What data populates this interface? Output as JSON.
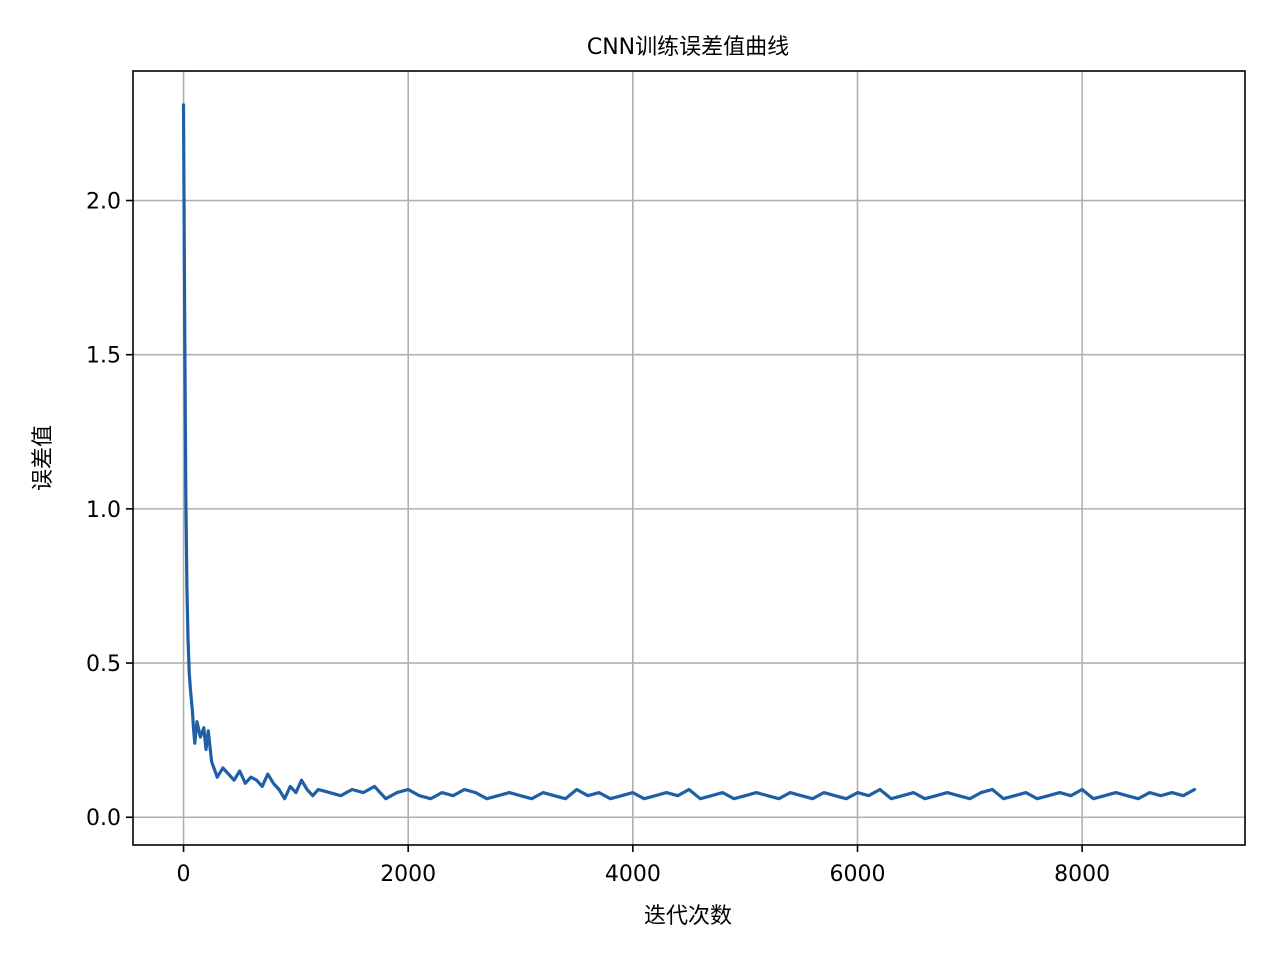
{
  "chart_data": {
    "type": "line",
    "title": "CNN训练误差值曲线",
    "xlabel": "迭代次数",
    "ylabel": "误差值",
    "xlim": [
      -450,
      9450
    ],
    "ylim": [
      -0.09,
      2.42
    ],
    "xticks": [
      0,
      2000,
      4000,
      6000,
      8000
    ],
    "xtick_labels": [
      "0",
      "2000",
      "4000",
      "6000",
      "8000"
    ],
    "yticks": [
      0.0,
      0.5,
      1.0,
      1.5,
      2.0
    ],
    "ytick_labels": [
      "0.0",
      "0.5",
      "1.0",
      "1.5",
      "2.0"
    ],
    "grid": true,
    "legend": "none",
    "color": "#1f5fa6",
    "series": [
      {
        "x": [
          0,
          10,
          20,
          30,
          40,
          50,
          60,
          70,
          80,
          90,
          100,
          120,
          150,
          180,
          200,
          220,
          250,
          280,
          300,
          350,
          400,
          450,
          500,
          550,
          600,
          650,
          700,
          750,
          800,
          850,
          900,
          950,
          1000,
          1050,
          1100,
          1150,
          1200,
          1300,
          1400,
          1500,
          1600,
          1700,
          1800,
          1900,
          2000,
          2100,
          2200,
          2300,
          2400,
          2500,
          2600,
          2700,
          2800,
          2900,
          3000,
          3100,
          3200,
          3300,
          3400,
          3500,
          3600,
          3700,
          3800,
          3900,
          4000,
          4100,
          4200,
          4300,
          4400,
          4500,
          4600,
          4700,
          4800,
          4900,
          5000,
          5100,
          5200,
          5300,
          5400,
          5500,
          5600,
          5700,
          5800,
          5900,
          6000,
          6100,
          6200,
          6300,
          6400,
          6500,
          6600,
          6700,
          6800,
          6900,
          7000,
          7100,
          7200,
          7300,
          7400,
          7500,
          7600,
          7700,
          7800,
          7900,
          8000,
          8100,
          8200,
          8300,
          8400,
          8500,
          8600,
          8700,
          8800,
          8900,
          9000
        ],
        "y": [
          2.31,
          1.6,
          1.05,
          0.75,
          0.58,
          0.47,
          0.42,
          0.38,
          0.34,
          0.28,
          0.24,
          0.31,
          0.26,
          0.29,
          0.22,
          0.28,
          0.18,
          0.15,
          0.13,
          0.16,
          0.14,
          0.12,
          0.15,
          0.11,
          0.13,
          0.12,
          0.1,
          0.14,
          0.11,
          0.09,
          0.06,
          0.1,
          0.08,
          0.12,
          0.09,
          0.07,
          0.09,
          0.08,
          0.07,
          0.09,
          0.08,
          0.1,
          0.06,
          0.08,
          0.09,
          0.07,
          0.06,
          0.08,
          0.07,
          0.09,
          0.08,
          0.06,
          0.07,
          0.08,
          0.07,
          0.06,
          0.08,
          0.07,
          0.06,
          0.09,
          0.07,
          0.08,
          0.06,
          0.07,
          0.08,
          0.06,
          0.07,
          0.08,
          0.07,
          0.09,
          0.06,
          0.07,
          0.08,
          0.06,
          0.07,
          0.08,
          0.07,
          0.06,
          0.08,
          0.07,
          0.06,
          0.08,
          0.07,
          0.06,
          0.08,
          0.07,
          0.09,
          0.06,
          0.07,
          0.08,
          0.06,
          0.07,
          0.08,
          0.07,
          0.06,
          0.08,
          0.09,
          0.06,
          0.07,
          0.08,
          0.06,
          0.07,
          0.08,
          0.07,
          0.09,
          0.06,
          0.07,
          0.08,
          0.07,
          0.06,
          0.08,
          0.07,
          0.08,
          0.07,
          0.09
        ]
      }
    ]
  }
}
